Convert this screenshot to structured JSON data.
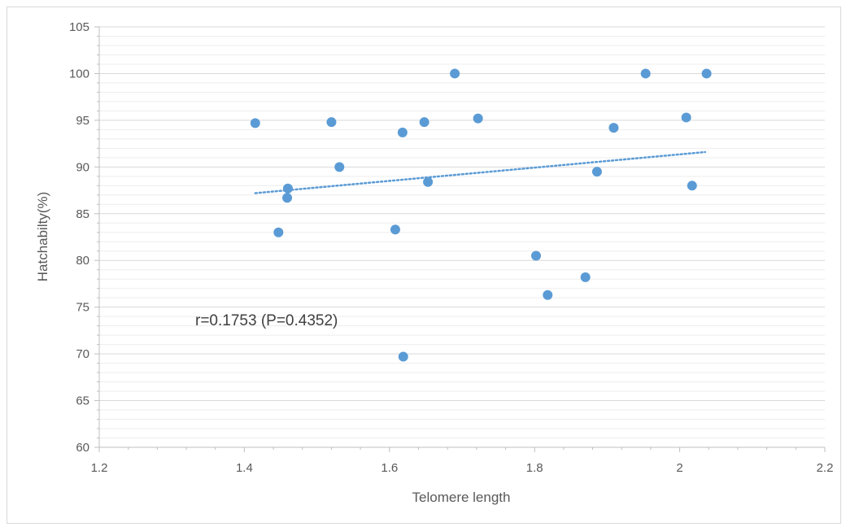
{
  "chart_data": {
    "type": "scatter",
    "xlabel": "Telomere length",
    "ylabel": "Hatchabilty(%)",
    "xlim": [
      1.2,
      2.2
    ],
    "ylim": [
      60,
      105
    ],
    "xticks": [
      "1.2",
      "1.4",
      "1.6",
      "1.8",
      "2",
      "2.2"
    ],
    "yticks": [
      "60",
      "65",
      "70",
      "75",
      "80",
      "85",
      "90",
      "95",
      "100",
      "105"
    ],
    "annotation": "r=0.1753 (P=0.4352)",
    "grid": "horizontal major and minor",
    "legend": "none",
    "series": [
      {
        "points": [
          {
            "x": 1.415,
            "y": 94.7
          },
          {
            "x": 1.447,
            "y": 83.0
          },
          {
            "x": 1.46,
            "y": 87.7
          },
          {
            "x": 1.459,
            "y": 86.7
          },
          {
            "x": 1.52,
            "y": 94.8
          },
          {
            "x": 1.531,
            "y": 90.0
          },
          {
            "x": 1.608,
            "y": 83.3
          },
          {
            "x": 1.618,
            "y": 93.7
          },
          {
            "x": 1.619,
            "y": 69.7
          },
          {
            "x": 1.648,
            "y": 94.8
          },
          {
            "x": 1.653,
            "y": 88.4
          },
          {
            "x": 1.69,
            "y": 100.0
          },
          {
            "x": 1.722,
            "y": 95.2
          },
          {
            "x": 1.802,
            "y": 80.5
          },
          {
            "x": 1.818,
            "y": 76.3
          },
          {
            "x": 1.87,
            "y": 78.2
          },
          {
            "x": 1.886,
            "y": 89.5
          },
          {
            "x": 1.909,
            "y": 94.2
          },
          {
            "x": 1.953,
            "y": 100.0
          },
          {
            "x": 2.009,
            "y": 95.3
          },
          {
            "x": 2.017,
            "y": 88.0
          },
          {
            "x": 2.037,
            "y": 100.0
          }
        ]
      }
    ],
    "trendline": {
      "style": "dotted",
      "from": {
        "x": 1.415,
        "y": 87.2
      },
      "to": {
        "x": 2.035,
        "y": 91.6
      }
    },
    "colors": {
      "point": "#5b9bd5",
      "trendline": "#5b9bd5",
      "major_grid": "#d9d9d9",
      "minor_grid": "#ededed",
      "axis": "#bfbfbf"
    }
  }
}
